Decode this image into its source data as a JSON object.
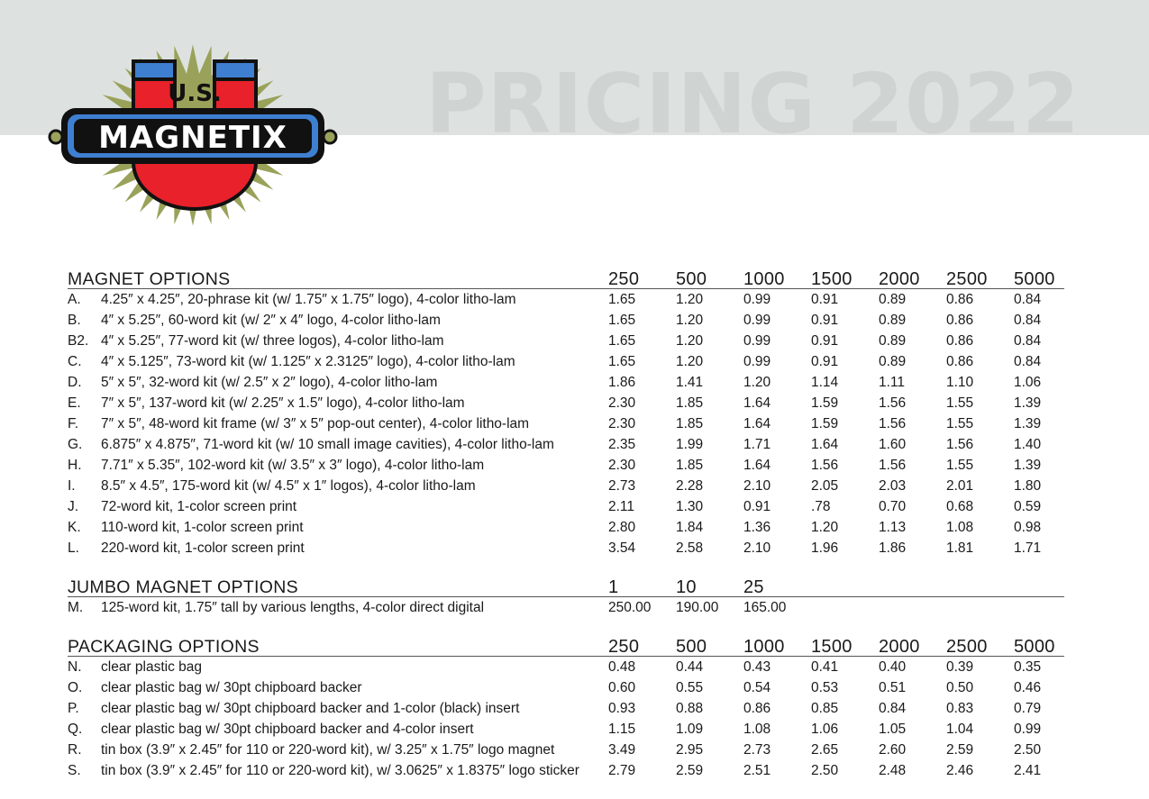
{
  "header": {
    "title": "PRICING 2022",
    "logo": {
      "top_text": "U.S.",
      "main_text": "MAGNETIX"
    }
  },
  "colors": {
    "header_band": "#dde2e1",
    "title_text": "#cfd4d3",
    "logo_red": "#e8212a",
    "logo_blue": "#3f7fd1",
    "logo_burst": "#9aa25a"
  },
  "sections": [
    {
      "title": "MAGNET OPTIONS",
      "quantities": [
        "250",
        "500",
        "1000",
        "1500",
        "2000",
        "2500",
        "5000"
      ],
      "rows": [
        {
          "code": "A.",
          "desc": "4.25″ x 4.25″, 20-phrase kit (w/ 1.75″ x 1.75″ logo), 4-color litho-lam",
          "prices": [
            "1.65",
            "1.20",
            "0.99",
            "0.91",
            "0.89",
            "0.86",
            "0.84"
          ]
        },
        {
          "code": "B.",
          "desc": "4″ x 5.25″, 60-word kit (w/ 2″ x 4″ logo, 4-color litho-lam",
          "prices": [
            "1.65",
            "1.20",
            "0.99",
            "0.91",
            "0.89",
            "0.86",
            "0.84"
          ]
        },
        {
          "code": "B2.",
          "desc": "4″ x 5.25″, 77-word kit (w/ three logos), 4-color litho-lam",
          "prices": [
            "1.65",
            "1.20",
            "0.99",
            "0.91",
            "0.89",
            "0.86",
            "0.84"
          ]
        },
        {
          "code": "C.",
          "desc": "4″ x 5.125″, 73-word kit (w/ 1.125″ x 2.3125″ logo), 4-color litho-lam",
          "prices": [
            "1.65",
            "1.20",
            "0.99",
            "0.91",
            "0.89",
            "0.86",
            "0.84"
          ]
        },
        {
          "code": "D.",
          "desc": "5″ x 5″, 32-word kit (w/ 2.5″ x 2″ logo), 4-color litho-lam",
          "prices": [
            "1.86",
            "1.41",
            "1.20",
            "1.14",
            "1.11",
            "1.10",
            "1.06"
          ]
        },
        {
          "code": "E.",
          "desc": "7″ x 5″, 137-word kit (w/ 2.25″ x 1.5″ logo), 4-color litho-lam",
          "prices": [
            "2.30",
            "1.85",
            "1.64",
            "1.59",
            "1.56",
            "1.55",
            "1.39"
          ]
        },
        {
          "code": "F.",
          "desc": "7″ x 5″, 48-word kit frame (w/ 3″ x 5″ pop-out center), 4-color litho-lam",
          "prices": [
            "2.30",
            "1.85",
            "1.64",
            "1.59",
            "1.56",
            "1.55",
            "1.39"
          ]
        },
        {
          "code": "G.",
          "desc": "6.875″ x 4.875″, 71-word kit (w/ 10 small image cavities), 4-color litho-lam",
          "prices": [
            "2.35",
            "1.99",
            "1.71",
            "1.64",
            "1.60",
            "1.56",
            "1.40"
          ]
        },
        {
          "code": "H.",
          "desc": "7.71″ x 5.35″, 102-word kit (w/ 3.5″ x 3″ logo), 4-color litho-lam",
          "prices": [
            "2.30",
            "1.85",
            "1.64",
            "1.56",
            "1.56",
            "1.55",
            "1.39"
          ]
        },
        {
          "code": "I.",
          "desc": "8.5″ x 4.5″, 175-word kit (w/ 4.5″ x 1″ logos), 4-color litho-lam",
          "prices": [
            "2.73",
            "2.28",
            "2.10",
            "2.05",
            "2.03",
            "2.01",
            "1.80"
          ]
        },
        {
          "code": "J.",
          "desc": "72-word kit, 1-color screen print",
          "prices": [
            "2.11",
            "1.30",
            "0.91",
            ".78",
            "0.70",
            "0.68",
            "0.59"
          ]
        },
        {
          "code": "K.",
          "desc": "110-word kit, 1-color screen print",
          "prices": [
            "2.80",
            "1.84",
            "1.36",
            "1.20",
            "1.13",
            "1.08",
            "0.98"
          ]
        },
        {
          "code": "L.",
          "desc": "220-word kit, 1-color screen print",
          "prices": [
            "3.54",
            "2.58",
            "2.10",
            "1.96",
            "1.86",
            "1.81",
            "1.71"
          ]
        }
      ]
    },
    {
      "title": "JUMBO MAGNET OPTIONS",
      "quantities": [
        "1",
        "10",
        "25"
      ],
      "rows": [
        {
          "code": "M.",
          "desc": "125-word kit, 1.75″ tall by various lengths, 4-color direct digital",
          "prices": [
            "250.00",
            "190.00",
            "165.00"
          ]
        }
      ]
    },
    {
      "title": "PACKAGING OPTIONS",
      "quantities": [
        "250",
        "500",
        "1000",
        "1500",
        "2000",
        "2500",
        "5000"
      ],
      "rows": [
        {
          "code": "N.",
          "desc": "clear plastic bag",
          "prices": [
            "0.48",
            "0.44",
            "0.43",
            "0.41",
            "0.40",
            "0.39",
            "0.35"
          ]
        },
        {
          "code": "O.",
          "desc": "clear plastic bag w/ 30pt chipboard backer",
          "prices": [
            "0.60",
            "0.55",
            "0.54",
            "0.53",
            "0.51",
            "0.50",
            "0.46"
          ]
        },
        {
          "code": "P.",
          "desc": "clear plastic bag w/ 30pt chipboard backer and 1-color (black) insert",
          "prices": [
            "0.93",
            "0.88",
            "0.86",
            "0.85",
            "0.84",
            "0.83",
            "0.79"
          ]
        },
        {
          "code": "Q.",
          "desc": "clear plastic bag w/ 30pt chipboard backer and 4-color insert",
          "prices": [
            "1.15",
            "1.09",
            "1.08",
            "1.06",
            "1.05",
            "1.04",
            "0.99"
          ]
        },
        {
          "code": "R.",
          "desc": "tin box (3.9″ x 2.45″ for 110 or 220-word kit), w/ 3.25″ x 1.75″ logo magnet",
          "prices": [
            "3.49",
            "2.95",
            "2.73",
            "2.65",
            "2.60",
            "2.59",
            "2.50"
          ]
        },
        {
          "code": "S.",
          "desc": "tin box (3.9″ x 2.45″ for 110 or 220-word kit), w/ 3.0625″ x 1.8375″ logo sticker",
          "prices": [
            "2.79",
            "2.59",
            "2.51",
            "2.50",
            "2.48",
            "2.46",
            "2.41"
          ]
        }
      ]
    }
  ]
}
